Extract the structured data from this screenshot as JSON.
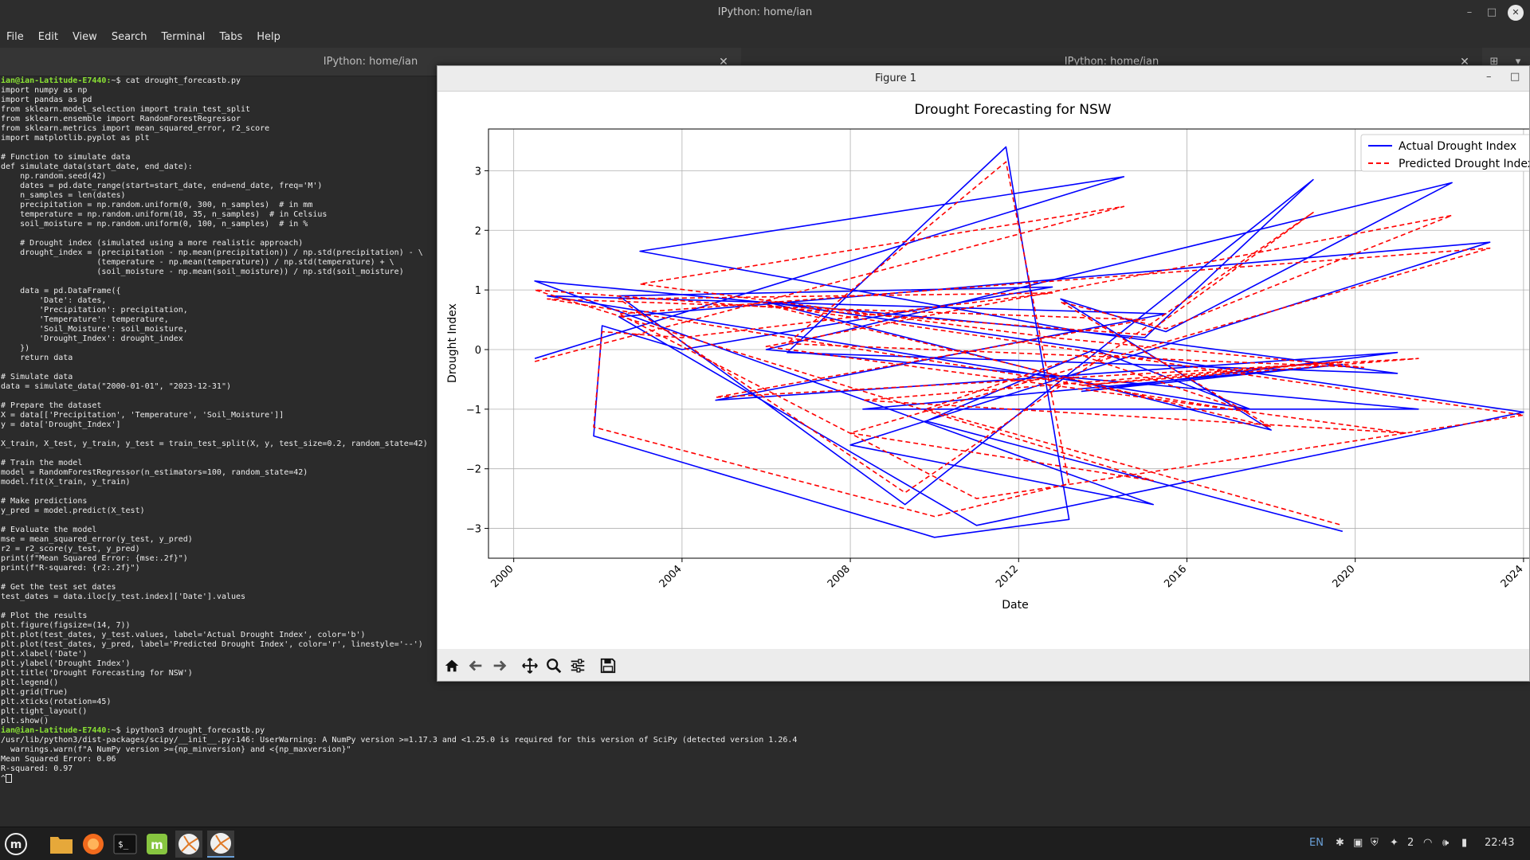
{
  "window": {
    "title": "IPython: home/ian"
  },
  "menu": [
    "File",
    "Edit",
    "View",
    "Search",
    "Terminal",
    "Tabs",
    "Help"
  ],
  "tabs": [
    {
      "label": "IPython: home/ian"
    },
    {
      "label": "IPython: home/ian"
    }
  ],
  "terminal": {
    "prompt1_user": "ian@ian-Latitude-E7440:",
    "prompt1_cmd": "~$ cat drought_forecastb.py",
    "code_lines": [
      "import numpy as np",
      "import pandas as pd",
      "from sklearn.model_selection import train_test_split",
      "from sklearn.ensemble import RandomForestRegressor",
      "from sklearn.metrics import mean_squared_error, r2_score",
      "import matplotlib.pyplot as plt",
      "",
      "# Function to simulate data",
      "def simulate_data(start_date, end_date):",
      "    np.random.seed(42)",
      "    dates = pd.date_range(start=start_date, end=end_date, freq='M')",
      "    n_samples = len(dates)",
      "    precipitation = np.random.uniform(0, 300, n_samples)  # in mm",
      "    temperature = np.random.uniform(10, 35, n_samples)  # in Celsius",
      "    soil_moisture = np.random.uniform(0, 100, n_samples)  # in %",
      "",
      "    # Drought index (simulated using a more realistic approach)",
      "    drought_index = (precipitation - np.mean(precipitation)) / np.std(precipitation) - \\",
      "                    (temperature - np.mean(temperature)) / np.std(temperature) + \\",
      "                    (soil_moisture - np.mean(soil_moisture)) / np.std(soil_moisture)",
      "",
      "    data = pd.DataFrame({",
      "        'Date': dates,",
      "        'Precipitation': precipitation,",
      "        'Temperature': temperature,",
      "        'Soil_Moisture': soil_moisture,",
      "        'Drought_Index': drought_index",
      "    })",
      "    return data",
      "",
      "# Simulate data",
      "data = simulate_data(\"2000-01-01\", \"2023-12-31\")",
      "",
      "# Prepare the dataset",
      "X = data[['Precipitation', 'Temperature', 'Soil_Moisture']]",
      "y = data['Drought_Index']",
      "",
      "X_train, X_test, y_train, y_test = train_test_split(X, y, test_size=0.2, random_state=42)",
      "",
      "# Train the model",
      "model = RandomForestRegressor(n_estimators=100, random_state=42)",
      "model.fit(X_train, y_train)",
      "",
      "# Make predictions",
      "y_pred = model.predict(X_test)",
      "",
      "# Evaluate the model",
      "mse = mean_squared_error(y_test, y_pred)",
      "r2 = r2_score(y_test, y_pred)",
      "print(f\"Mean Squared Error: {mse:.2f}\")",
      "print(f\"R-squared: {r2:.2f}\")",
      "",
      "# Get the test set dates",
      "test_dates = data.iloc[y_test.index]['Date'].values",
      "",
      "# Plot the results",
      "plt.figure(figsize=(14, 7))",
      "plt.plot(test_dates, y_test.values, label='Actual Drought Index', color='b')",
      "plt.plot(test_dates, y_pred, label='Predicted Drought Index', color='r', linestyle='--')",
      "plt.xlabel('Date')",
      "plt.ylabel('Drought Index')",
      "plt.title('Drought Forecasting for NSW')",
      "plt.legend()",
      "plt.grid(True)",
      "plt.xticks(rotation=45)",
      "plt.tight_layout()",
      "plt.show()"
    ],
    "prompt2_user": "ian@ian-Latitude-E7440:",
    "prompt2_cmd": "~$ ipython3 drought_forecastb.py",
    "output_lines": [
      "/usr/lib/python3/dist-packages/scipy/__init__.py:146: UserWarning: A NumPy version >=1.17.3 and <1.25.0 is required for this version of SciPy (detected version 1.26.4",
      "  warnings.warn(f\"A NumPy version >={np_minversion} and <{np_maxversion}\"",
      "Mean Squared Error: 0.06",
      "R-squared: 0.97",
      "^"
    ]
  },
  "figure": {
    "window_title": "Figure 1"
  },
  "chart_data": {
    "type": "line",
    "title": "Drought Forecasting for NSW",
    "xlabel": "Date",
    "ylabel": "Drought Index",
    "xlim": [
      1999.4,
      2024.4
    ],
    "ylim": [
      -3.5,
      3.7
    ],
    "x_ticks": [
      2000,
      2004,
      2008,
      2012,
      2016,
      2020,
      2024
    ],
    "x_tick_labels": [
      "2000",
      "2004",
      "2008",
      "2012",
      "2016",
      "2020",
      "2024"
    ],
    "y_ticks": [
      -3,
      -2,
      -1,
      0,
      1,
      2,
      3
    ],
    "y_tick_labels": [
      "−3",
      "−2",
      "−1",
      "0",
      "1",
      "2",
      "3"
    ],
    "grid": true,
    "legend_position": "top-right",
    "series": [
      {
        "name": "Actual Drought Index",
        "color": "#0000ff",
        "style": "solid",
        "x": [
          2000.5,
          2014.5,
          2003.0,
          2013.5,
          2021.0,
          2006.5,
          2011.7,
          2013.2,
          2010.0,
          2001.9,
          2002.1,
          2004.0,
          2012.8,
          2002.5,
          2009.3,
          2019.0,
          2015.0,
          2000.5,
          2015.2,
          2008.0,
          2023.2,
          2002.5,
          2011.0,
          2024.0,
          2006.0,
          2018.0,
          2013.0,
          2015.5,
          2022.3,
          2006.0,
          2021.5,
          2008.3,
          2019.7,
          2013.5,
          2021.0,
          2004.8,
          2015.5,
          2000.8,
          2017.5,
          2013.8,
          2009.8,
          2019.7
        ],
        "y": [
          -0.15,
          2.9,
          1.65,
          0.3,
          -0.4,
          -0.05,
          3.4,
          -2.85,
          -3.15,
          -1.45,
          0.4,
          0.0,
          1.05,
          0.9,
          -2.6,
          2.85,
          0.2,
          1.15,
          -2.6,
          -1.6,
          1.8,
          0.55,
          -2.95,
          -1.05,
          0.8,
          -1.35,
          0.85,
          0.3,
          2.8,
          0.0,
          -1.0,
          -1.0,
          -0.25,
          -0.7,
          -0.05,
          -0.85,
          0.6,
          0.9,
          -1.0,
          0.0,
          -1.2,
          -3.05
        ]
      },
      {
        "name": "Predicted Drought Index",
        "color": "#ff0000",
        "style": "dashed",
        "x": [
          2000.5,
          2014.5,
          2003.0,
          2012.8,
          2020.2,
          2006.5,
          2011.7,
          2013.2,
          2010.0,
          2001.9,
          2002.1,
          2004.0,
          2012.8,
          2002.5,
          2009.3,
          2019.0,
          2015.0,
          2000.5,
          2015.2,
          2008.0,
          2023.2,
          2002.5,
          2011.0,
          2024.0,
          2006.0,
          2018.0,
          2013.0,
          2015.5,
          2022.3,
          2006.0,
          2021.2,
          2008.3,
          2019.7,
          2013.5,
          2021.5,
          2004.8,
          2015.0,
          2000.8,
          2017.5,
          2013.5,
          2009.8,
          2019.7
        ],
        "y": [
          -0.2,
          2.4,
          1.1,
          0.2,
          -0.3,
          0.1,
          3.15,
          -2.25,
          -2.8,
          -1.3,
          0.3,
          0.2,
          0.95,
          0.85,
          -2.4,
          2.3,
          0.25,
          1.0,
          -2.2,
          -1.4,
          1.7,
          0.6,
          -2.5,
          -1.1,
          0.75,
          -1.3,
          0.8,
          0.35,
          2.25,
          0.05,
          -1.4,
          -0.85,
          -0.2,
          -0.6,
          -0.15,
          -0.8,
          0.5,
          0.85,
          -1.05,
          -0.1,
          -1.0,
          -2.95
        ]
      }
    ]
  },
  "taskbar": {
    "lang": "EN",
    "notif_count": "2",
    "clock": "22:43"
  }
}
